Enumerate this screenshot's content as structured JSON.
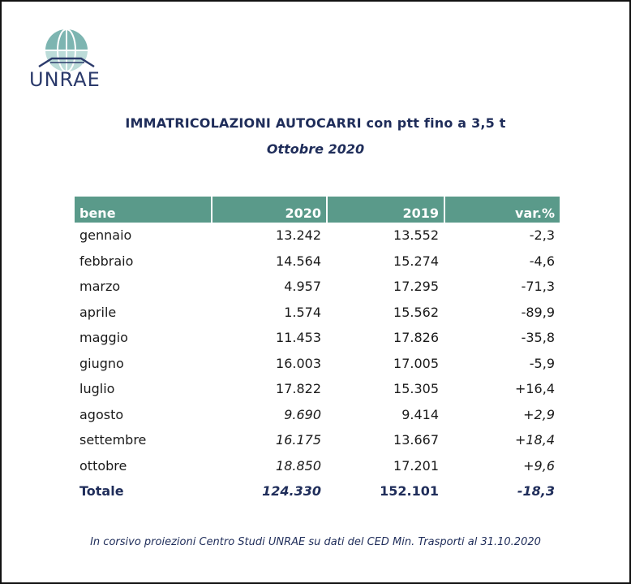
{
  "logo": {
    "text": "UNRAE",
    "icon": "unrae-globe-logo"
  },
  "title": "IMMATRICOLAZIONI AUTOCARRI con ptt fino a 3,5 t",
  "subtitle": "Ottobre 2020",
  "table": {
    "headers": [
      "bene",
      "2020",
      "2019",
      "var.%"
    ],
    "rows": [
      {
        "label": "gennaio",
        "v2020": "13.242",
        "v2019": "13.552",
        "var": "-2,3",
        "proj": false
      },
      {
        "label": "febbraio",
        "v2020": "14.564",
        "v2019": "15.274",
        "var": "-4,6",
        "proj": false
      },
      {
        "label": "marzo",
        "v2020": "4.957",
        "v2019": "17.295",
        "var": "-71,3",
        "proj": false
      },
      {
        "label": "aprile",
        "v2020": "1.574",
        "v2019": "15.562",
        "var": "-89,9",
        "proj": false
      },
      {
        "label": "maggio",
        "v2020": "11.453",
        "v2019": "17.826",
        "var": "-35,8",
        "proj": false
      },
      {
        "label": "giugno",
        "v2020": "16.003",
        "v2019": "17.005",
        "var": "-5,9",
        "proj": false
      },
      {
        "label": "luglio",
        "v2020": "17.822",
        "v2019": "15.305",
        "var": "+16,4",
        "proj": false
      },
      {
        "label": "agosto",
        "v2020": "9.690",
        "v2019": "9.414",
        "var": "+2,9",
        "proj": true
      },
      {
        "label": "settembre",
        "v2020": "16.175",
        "v2019": "13.667",
        "var": "+18,4",
        "proj": true
      },
      {
        "label": "ottobre",
        "v2020": "18.850",
        "v2019": "17.201",
        "var": "+9,6",
        "proj": true
      }
    ],
    "total": {
      "label": "Totale",
      "v2020": "124.330",
      "v2019": "152.101",
      "var": "-18,3"
    }
  },
  "footnote": "In corsivo proiezioni Centro Studi UNRAE su dati del CED Min. Trasporti al 31.10.2020",
  "colors": {
    "header_bg": "#5a9a8a",
    "title": "#1f2d5a",
    "logo_globe": "#6aa9a6",
    "logo_text": "#2b3a6b"
  }
}
